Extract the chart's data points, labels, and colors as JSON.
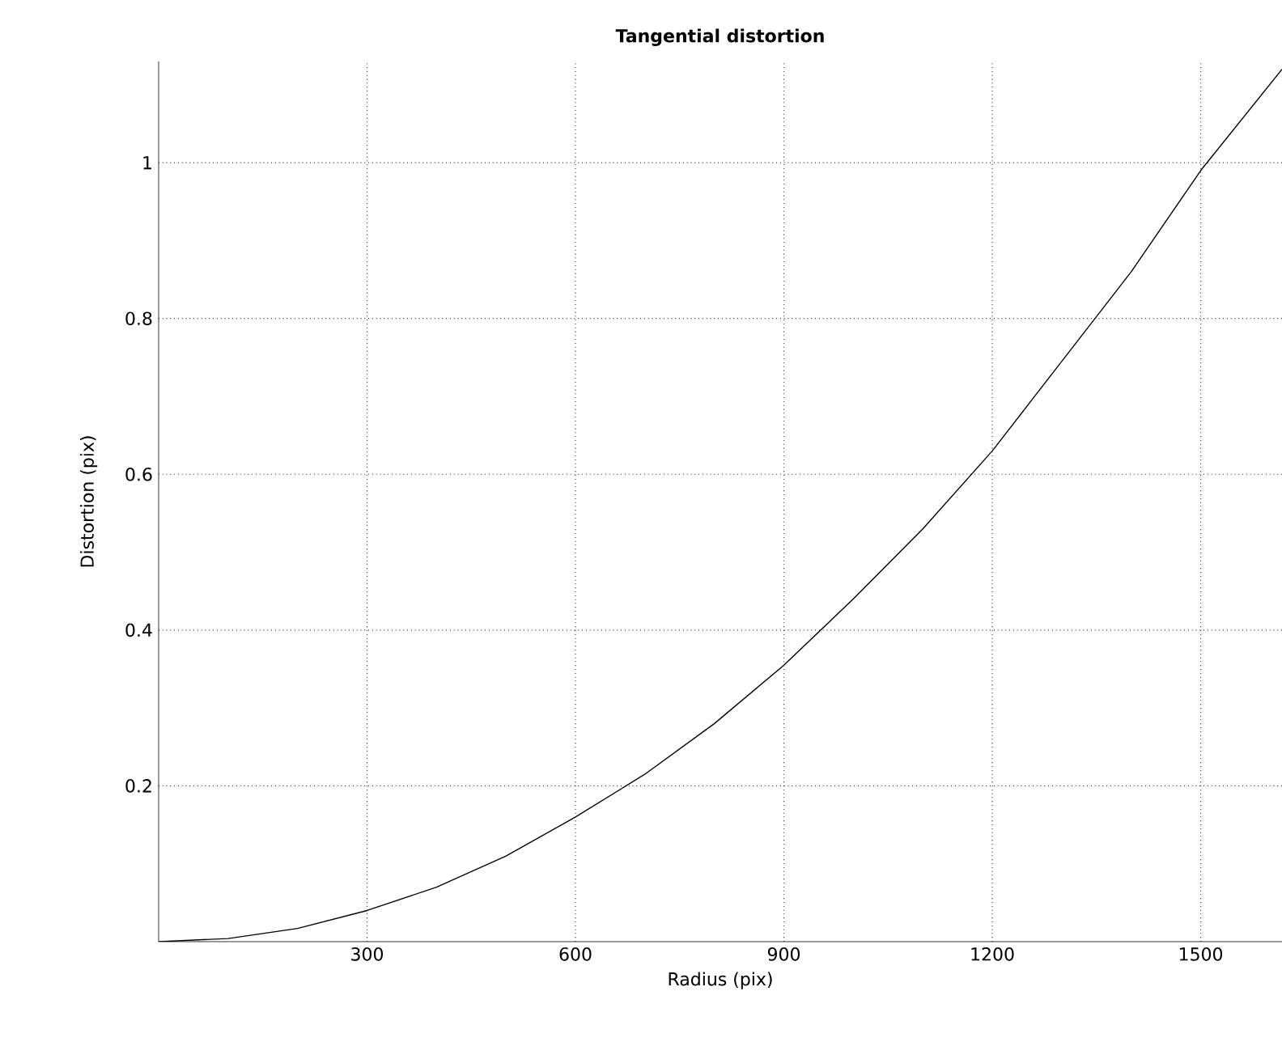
{
  "chart_data": {
    "type": "line",
    "title": "Tangential distortion",
    "xlabel": "Radius (pix)",
    "ylabel": "Distortion (pix)",
    "x": [
      0,
      100,
      200,
      300,
      400,
      500,
      600,
      700,
      800,
      900,
      1000,
      1100,
      1200,
      1300,
      1400,
      1500,
      1617
    ],
    "series": [
      {
        "color": "#000000",
        "values": [
          0,
          0.004,
          0.017,
          0.04,
          0.07,
          0.11,
          0.16,
          0.215,
          0.28,
          0.355,
          0.44,
          0.53,
          0.63,
          0.745,
          0.86,
          0.99,
          1.12
        ]
      }
    ],
    "xlim": [
      0,
      1617
    ],
    "ylim": [
      0,
      1.13
    ],
    "xticks": [
      300,
      600,
      900,
      1200,
      1500
    ],
    "yticks": [
      0.2,
      0.4,
      0.6,
      0.8,
      1
    ],
    "grid": true,
    "marker": "none",
    "line_style": "solid"
  }
}
